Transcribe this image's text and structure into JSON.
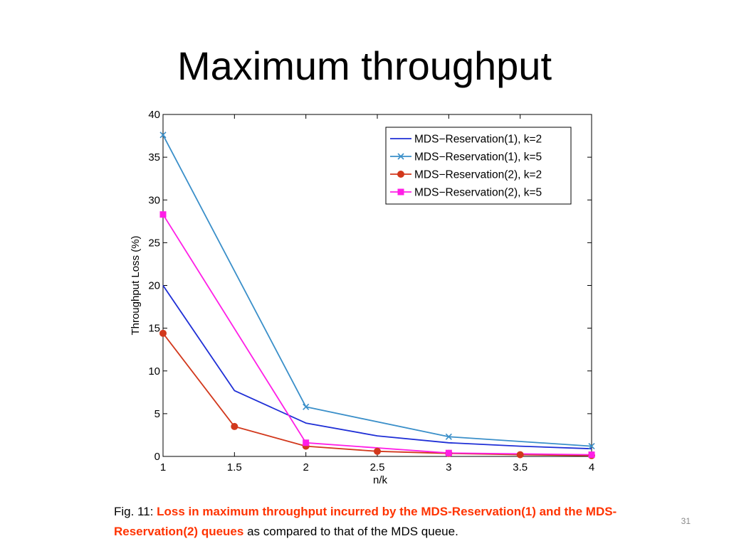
{
  "slide": {
    "title": "Maximum throughput",
    "page_number": "31"
  },
  "caption": {
    "prefix": "Fig. 11: ",
    "highlight": "Loss in maximum throughput incurred by the MDS-Reservation(1) and the MDS-Reservation(2) queues",
    "suffix": " as compared to that of the MDS queue."
  },
  "colors": {
    "highlight": "#ff3300",
    "series_1": "#1f2fd6",
    "series_2": "#3a8fc9",
    "series_3": "#d2381c",
    "series_4": "#ff1ee6"
  },
  "chart_data": {
    "type": "line",
    "xlabel": "n/k",
    "ylabel": "Throughput Loss (%)",
    "xlim": [
      1,
      4
    ],
    "ylim": [
      0,
      40
    ],
    "xticks": [
      "1",
      "1.5",
      "2",
      "2.5",
      "3",
      "3.5",
      "4"
    ],
    "yticks": [
      "0",
      "5",
      "10",
      "15",
      "20",
      "25",
      "30",
      "35",
      "40"
    ],
    "grid": false,
    "legend_position": "top-right",
    "series": [
      {
        "name": "MDS−Reservation(1), k=2",
        "marker": "none",
        "color": "#1f2fd6",
        "x": [
          1,
          1.5,
          2,
          2.5,
          3,
          3.5,
          4
        ],
        "y": [
          20,
          7.7,
          3.9,
          2.4,
          1.6,
          1.2,
          0.9
        ]
      },
      {
        "name": "MDS−Reservation(1), k=5",
        "marker": "x",
        "color": "#3a8fc9",
        "x": [
          1,
          2,
          3,
          4
        ],
        "y": [
          37.6,
          5.8,
          2.3,
          1.2
        ]
      },
      {
        "name": "MDS−Reservation(2), k=2",
        "marker": "circle",
        "color": "#d2381c",
        "x": [
          1,
          1.5,
          2,
          2.5,
          3,
          3.5,
          4
        ],
        "y": [
          14.4,
          3.5,
          1.2,
          0.6,
          0.35,
          0.2,
          0.1
        ]
      },
      {
        "name": "MDS−Reservation(2), k=5",
        "marker": "square",
        "color": "#ff1ee6",
        "x": [
          1,
          2,
          3,
          4
        ],
        "y": [
          28.3,
          1.6,
          0.4,
          0.2
        ]
      }
    ]
  }
}
